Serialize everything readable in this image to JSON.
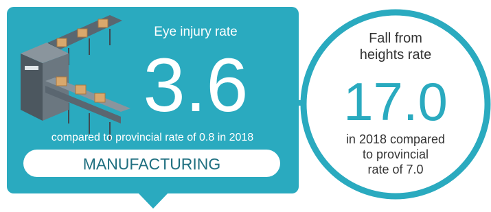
{
  "panel": {
    "label": "Eye injury rate",
    "value": "3.6",
    "note": "compared to provincial rate of 0.8 in 2018",
    "industry": "MANUFACTURING"
  },
  "circle": {
    "label_lines": [
      "Fall from",
      "heights rate"
    ],
    "value": "17.0",
    "note_lines": [
      "in 2018 compared",
      "to provincial",
      "rate of 7.0"
    ]
  }
}
